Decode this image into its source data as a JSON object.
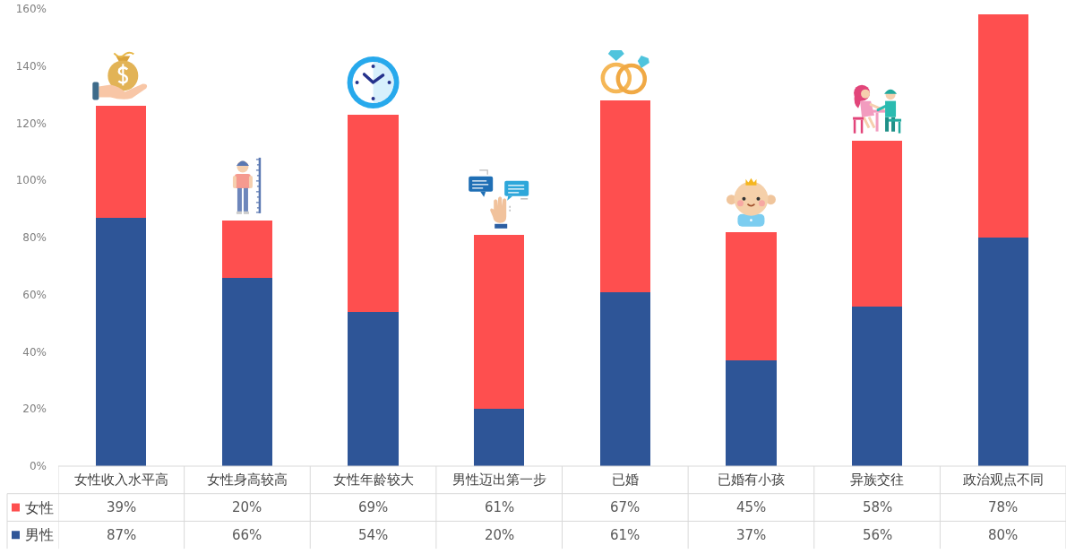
{
  "chart_data": {
    "type": "bar",
    "stacked": true,
    "categories": [
      "女性收入水平高",
      "女性身高较高",
      "女性年龄较大",
      "男性迈出第一步",
      "已婚",
      "已婚有小孩",
      "异族交往",
      "政治观点不同"
    ],
    "series": [
      {
        "name": "男性",
        "color": "#2e5597",
        "values": [
          87,
          66,
          54,
          20,
          61,
          37,
          56,
          80
        ],
        "value_labels": [
          "87%",
          "66%",
          "54%",
          "20%",
          "61%",
          "37%",
          "56%",
          "80%"
        ]
      },
      {
        "name": "女性",
        "color": "#fe4f4f",
        "values": [
          39,
          20,
          69,
          61,
          67,
          45,
          58,
          78
        ],
        "value_labels": [
          "39%",
          "20%",
          "69%",
          "61%",
          "67%",
          "45%",
          "58%",
          "78%"
        ]
      }
    ],
    "ylim": [
      0,
      160
    ],
    "yticks": [
      {
        "value": 0,
        "label": "0%"
      },
      {
        "value": 20,
        "label": "20%"
      },
      {
        "value": 40,
        "label": "40%"
      },
      {
        "value": 60,
        "label": "60%"
      },
      {
        "value": 80,
        "label": "80%"
      },
      {
        "value": 100,
        "label": "100%"
      },
      {
        "value": 120,
        "label": "120%"
      },
      {
        "value": 140,
        "label": "140%"
      },
      {
        "value": 160,
        "label": "160%"
      }
    ],
    "legend": "bottom left"
  }
}
